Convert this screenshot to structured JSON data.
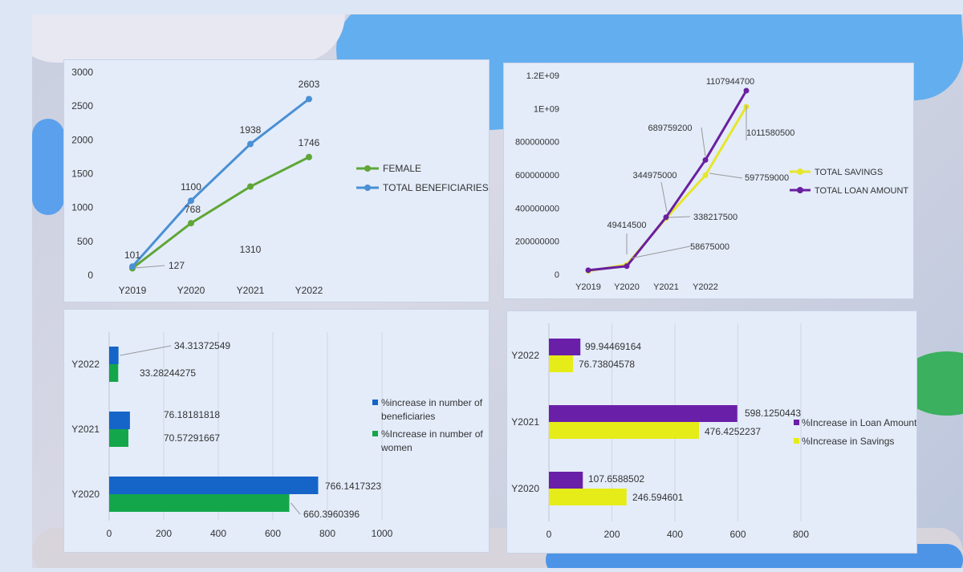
{
  "chart_data": [
    {
      "type": "line",
      "categories": [
        "Y2019",
        "Y2020",
        "Y2021",
        "Y2022"
      ],
      "ylim": [
        0,
        3000
      ],
      "yticks": [
        0,
        500,
        1000,
        1500,
        2000,
        2500,
        3000
      ],
      "series": [
        {
          "name": "FEMALE",
          "color": "#5fa637",
          "values": [
            101,
            768,
            1310,
            1746
          ]
        },
        {
          "name": "TOTAL BENEFICIARIES",
          "color": "#4a90d4",
          "values": [
            127,
            1100,
            1938,
            2603
          ]
        }
      ],
      "data_labels": [
        "101",
        "127",
        "1100",
        "768",
        "1938",
        "1310",
        "2603",
        "1746"
      ],
      "legend": "right"
    },
    {
      "type": "line",
      "categories": [
        "Y2019",
        "Y2020",
        "Y2021",
        "Y2022",
        ""
      ],
      "ylim": [
        0,
        1200000000
      ],
      "ytick_labels": [
        "0",
        "200000000",
        "400000000",
        "600000000",
        "800000000",
        "1E+09",
        "1.2E+09"
      ],
      "series": [
        {
          "name": "TOTAL SAVINGS",
          "color": "#e6e62a",
          "values": [
            20000000,
            58675000,
            338217500,
            597759000,
            1011580500
          ]
        },
        {
          "name": "TOTAL LOAN AMOUNT",
          "color": "#6a1fa0",
          "values": [
            25000000,
            49414500,
            344975000,
            689759200,
            1107944700
          ]
        }
      ],
      "data_labels": [
        "49414500",
        "58675000",
        "344975000",
        "338217500",
        "689759200",
        "597759000",
        "1107944700",
        "1011580500"
      ],
      "legend": "right"
    },
    {
      "type": "bar",
      "orientation": "horizontal",
      "categories": [
        "Y2022",
        "Y2021",
        "Y2020"
      ],
      "xlim": [
        0,
        1000
      ],
      "xticks": [
        0,
        200,
        400,
        600,
        800,
        1000
      ],
      "series": [
        {
          "name": "%increase in number of beneficiaries",
          "color": "#1565c8",
          "values": [
            34.31372549,
            76.18181818,
            766.1417323
          ],
          "labels": [
            "34.31372549",
            "76.18181818",
            "766.1417323"
          ]
        },
        {
          "name": "%Increase in number of women",
          "color": "#14a64a",
          "values": [
            33.28244275,
            70.57291667,
            660.3960396
          ],
          "labels": [
            "33.28244275",
            "70.57291667",
            "660.3960396"
          ]
        }
      ],
      "legend_lines": [
        [
          "%increase in number of",
          "beneficiaries"
        ],
        [
          "%Increase in number of",
          "women"
        ]
      ],
      "legend": "right"
    },
    {
      "type": "bar",
      "orientation": "horizontal",
      "categories": [
        "Y2022",
        "Y2021",
        "Y2020"
      ],
      "xlim": [
        0,
        800
      ],
      "xticks": [
        0,
        200,
        400,
        600,
        800
      ],
      "series": [
        {
          "name": "%Increase in Loan Amount",
          "color": "#6a1fa8",
          "values": [
            99.94469164,
            598.1250443,
            107.6588502
          ],
          "labels": [
            "99.94469164",
            "598.1250443",
            "107.6588502"
          ]
        },
        {
          "name": "%Increase in Savings",
          "color": "#e6ec18",
          "values": [
            76.73804578,
            476.4252237,
            246.594601
          ],
          "labels": [
            "76.73804578",
            "476.4252237",
            "246.594601"
          ]
        }
      ],
      "legend": "right"
    }
  ]
}
